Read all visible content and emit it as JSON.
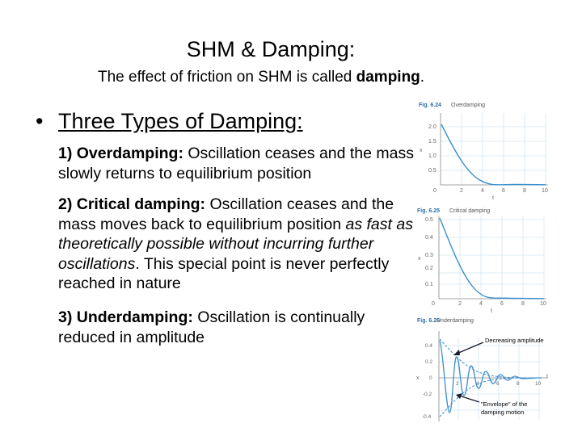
{
  "slide": {
    "title": "SHM & Damping:",
    "subtitle_pre": "The effect of friction on SHM is called ",
    "subtitle_bold": "damping",
    "subtitle_post": ".",
    "bullet_heading": "Three Types of Damping:"
  },
  "items": [
    {
      "number": "1) ",
      "term": "Overdamping:",
      "text": " Oscillation ceases and the mass slowly returns to equilibrium position"
    },
    {
      "number": "2) ",
      "term": "Critical damping:",
      "text": " Oscillation ceases and the mass moves back to equilibrium position ",
      "italic": "as fast as theoretically possible without incurring further oscillations",
      "text2": ". This special point is never perfectly reached in nature"
    },
    {
      "number": "3) ",
      "term": "Underdamping:",
      "text": " Oscillation is continually reduced in amplitude"
    }
  ],
  "figures": [
    {
      "fig_label": "Fig. 6.24",
      "caption": "Overdamping",
      "x_axis_label": "t",
      "y_axis_label": "x",
      "x_ticks": [
        "0",
        "2",
        "4",
        "6",
        "8",
        "10"
      ],
      "y_ticks": [
        "2.0",
        "1.5",
        "1.0",
        "0.5"
      ]
    },
    {
      "fig_label": "Fig. 6.25",
      "caption": "Critical damping",
      "x_axis_label": "t",
      "y_axis_label": "x",
      "x_ticks": [
        "0",
        "2",
        "4",
        "6",
        "8",
        "10"
      ],
      "y_ticks": [
        "0.5",
        "0.4",
        "0.3",
        "0.2",
        "0.1"
      ]
    },
    {
      "fig_label": "Fig. 6.26",
      "caption": "Underdamping",
      "x_axis_label": "t",
      "y_axis_label": "x",
      "x_ticks": [
        "2",
        "4",
        "6",
        "8",
        "10"
      ],
      "y_ticks": [
        "0.4",
        "0.2",
        "0",
        "-0.2",
        "-0.4"
      ],
      "annotation_top": "Decreasing amplitude",
      "annotation_bottom": "\"Envelope\" of the damping motion"
    }
  ],
  "colors": {
    "curve": "#3a8fd0",
    "grid": "#d4e6f3",
    "caption": "#2b6fa8",
    "arrow": "#1a1a2e"
  }
}
